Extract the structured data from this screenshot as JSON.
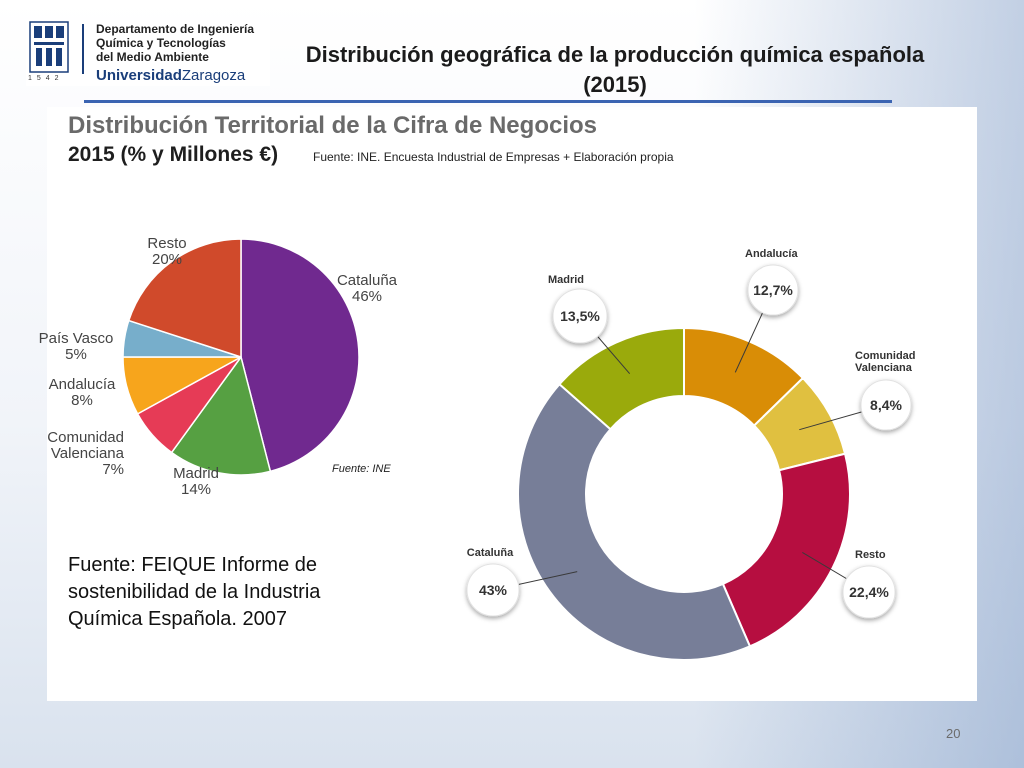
{
  "logo": {
    "dept_line1": "Departamento de Ingeniería",
    "dept_line2": "Química y Tecnologías",
    "dept_line3": "del Medio Ambiente",
    "uni_bold": "Universidad",
    "uni_city": "Zaragoza",
    "year": "1542"
  },
  "slide": {
    "title": "Distribución geográfica de la producción química española (2015)",
    "page_number": "20"
  },
  "panel": {
    "title_line1": "Distribución Territorial de la Cifra de Negocios",
    "title_line2": "2015 (% y Millones €)",
    "source": "Fuente: INE. Encuesta Industrial de Empresas + Elaboración propia"
  },
  "note": {
    "text": "Fuente: FEIQUE Informe de sostenibilidad de la Industria Química Española. 2007"
  },
  "chart_data": [
    {
      "type": "pie",
      "source_label": "Fuente: INE",
      "slices": [
        {
          "label": "Cataluña",
          "value": 46,
          "value_label": "46%",
          "color": "#70298f"
        },
        {
          "label": "Madrid",
          "value": 14,
          "value_label": "14%",
          "color": "#56a042"
        },
        {
          "label": "Comunidad Valenciana",
          "label_lines": [
            "Comunidad",
            "Valenciana"
          ],
          "value": 7,
          "value_label": "7%",
          "color": "#e63b56"
        },
        {
          "label": "Andalucía",
          "value": 8,
          "value_label": "8%",
          "color": "#f7a51c"
        },
        {
          "label": "País Vasco",
          "value": 5,
          "value_label": "5%",
          "color": "#77aecb"
        },
        {
          "label": "Resto",
          "value": 20,
          "value_label": "20%",
          "color": "#d04a2b"
        }
      ]
    },
    {
      "type": "pie",
      "style": "donut",
      "slices": [
        {
          "label": "Andalucía",
          "value": 12.7,
          "value_label": "12,7%",
          "color": "#d98d06"
        },
        {
          "label": "Comunidad Valenciana",
          "label_lines": [
            "Comunidad",
            "Valenciana"
          ],
          "value": 8.4,
          "value_label": "8,4%",
          "color": "#e0c040"
        },
        {
          "label": "Resto",
          "value": 22.4,
          "value_label": "22,4%",
          "color": "#b60e40"
        },
        {
          "label": "Cataluña",
          "value": 43,
          "value_label": "43%",
          "color": "#777e98"
        },
        {
          "label": "Madrid",
          "value": 13.5,
          "value_label": "13,5%",
          "color": "#9aaa0c"
        }
      ]
    }
  ]
}
